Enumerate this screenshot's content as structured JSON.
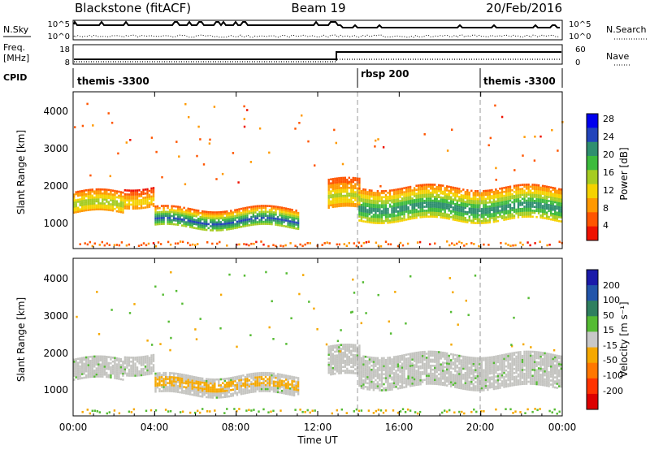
{
  "header": {
    "station": "Blackstone (fitACF)",
    "beam": "Beam 19",
    "date": "20/Feb/2016"
  },
  "status_panels": {
    "nsky_label": "N.Sky",
    "nsearch_label": "N.Search",
    "count_ticks": [
      "10^5",
      "10^0"
    ],
    "freq_label_top": "Freq.",
    "freq_label_unit": "[MHz]",
    "freq_ticks": [
      "18",
      "8"
    ],
    "nave_label": "Nave",
    "nave_ticks": [
      "60",
      "0"
    ],
    "cpid_label": "CPID",
    "cpid_segments": [
      {
        "label": "themis -3300",
        "start_hour": 0
      },
      {
        "label": "rbsp 200",
        "start_hour": 14
      },
      {
        "label": "themis -3300",
        "start_hour": 20
      }
    ]
  },
  "power_panel": {
    "ylabel": "Slant Range [km]",
    "yticks": [
      "4000",
      "3000",
      "2000",
      "1000"
    ],
    "colorbar_label": "Power [dB]",
    "colorbar_ticks": [
      "28",
      "24",
      "20",
      "16",
      "12",
      "8",
      "4"
    ],
    "colors": [
      "#0000ee",
      "#2244bb",
      "#2f8f6f",
      "#3dbb3d",
      "#a6cc22",
      "#f5d200",
      "#ff9900",
      "#ff5500",
      "#ee1100"
    ]
  },
  "velocity_panel": {
    "ylabel": "Slant Range [km]",
    "yticks": [
      "4000",
      "3000",
      "2000",
      "1000"
    ],
    "colorbar_label": "Velocity [m s⁻¹]",
    "colorbar_ticks": [
      "200",
      "100",
      "50",
      "15",
      "-15",
      "-50",
      "-100",
      "-200"
    ],
    "colors": [
      "#1a1aaa",
      "#2255aa",
      "#2f7f5f",
      "#55bb33",
      "#c8c8c8",
      "#f5a800",
      "#ff7700",
      "#ff3300",
      "#dd0000"
    ],
    "ground_scatter_color": "#c4c4c0"
  },
  "xaxis": {
    "label": "Time UT",
    "ticks": [
      "00:00",
      "04:00",
      "08:00",
      "12:00",
      "16:00",
      "20:00",
      "00:00"
    ]
  },
  "chart_data": {
    "type": "heatmap",
    "x_range_hours": [
      0,
      24
    ],
    "y_range_km": [
      180,
      4500
    ],
    "xlabel": "Time UT",
    "ylabel": "Slant Range [km]",
    "bands": [
      {
        "t0": 0.0,
        "t1": 2.5,
        "r0": 1200,
        "r1": 1800,
        "power": 14
      },
      {
        "t0": 2.5,
        "t1": 4.0,
        "r0": 1400,
        "r1": 1900,
        "power": 10
      },
      {
        "t0": 4.0,
        "t1": 11.0,
        "r0": 800,
        "r1": 1300,
        "power": 22
      },
      {
        "t0": 12.5,
        "t1": 14.0,
        "r0": 1300,
        "r1": 2100,
        "power": 12
      },
      {
        "t0": 14.0,
        "t1": 24.0,
        "r0": 1000,
        "r1": 1900,
        "power": 20
      }
    ]
  }
}
